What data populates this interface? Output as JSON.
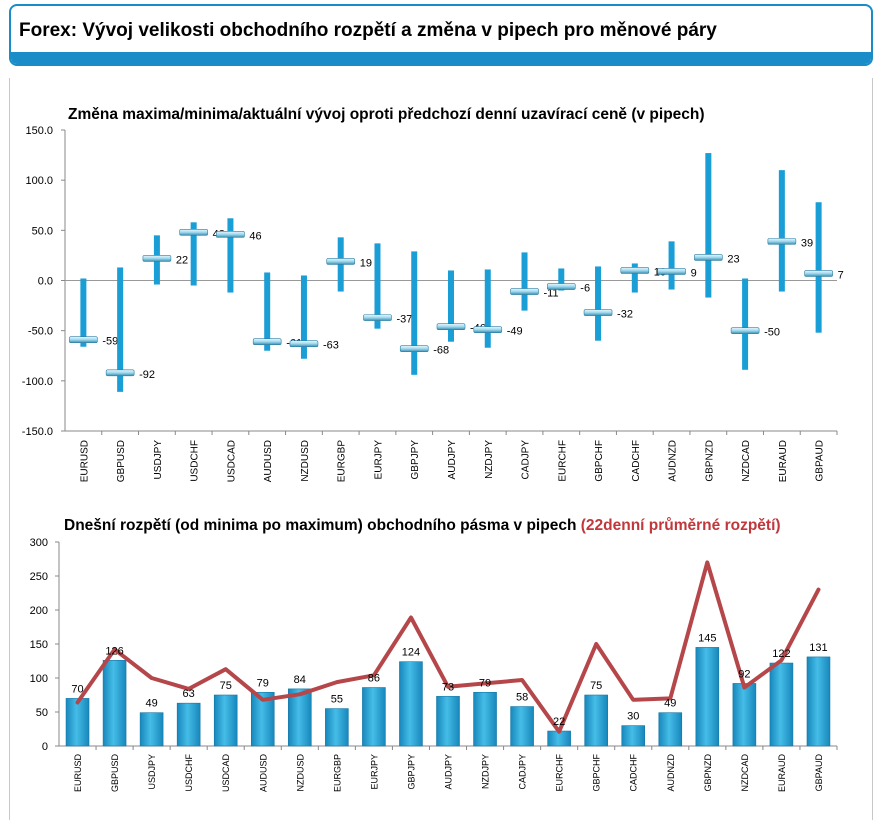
{
  "header": {
    "title": "Forex: Vývoj velikosti obchodního rozpětí a změna v pipech pro měnové páry"
  },
  "colors": {
    "accent": "#1a8cc7",
    "bar": "#1a9ed6",
    "marker": "#9ed8ef",
    "avg_line": "#b5474a",
    "red_text": "#c0373c"
  },
  "chart_data": [
    {
      "type": "range",
      "title": "Změna maxima/minima/aktuální vývoj oproti předchozí denní uzavírací ceně (v pipech)",
      "xlabel": "",
      "ylabel": "",
      "ylim": [
        -150,
        150
      ],
      "yticks": [
        "150.0",
        "100.0",
        "50.0",
        "0.0",
        "-50.0",
        "-100.0",
        "-150.0"
      ],
      "categories": [
        "EURUSD",
        "GBPUSD",
        "USDJPY",
        "USDCHF",
        "USDCAD",
        "AUDUSD",
        "NZDUSD",
        "EURGBP",
        "EURJPY",
        "GBPJPY",
        "AUDJPY",
        "NZDJPY",
        "CADJPY",
        "EURCHF",
        "GBPCHF",
        "CADCHF",
        "AUDNZD",
        "GBPNZD",
        "NZDCAD",
        "EURAUD",
        "GBPAUD"
      ],
      "series": [
        {
          "name": "max",
          "values": [
            2,
            13,
            45,
            58,
            62,
            8,
            5,
            43,
            37,
            29,
            10,
            11,
            28,
            12,
            14,
            17,
            39,
            127,
            2,
            110,
            78
          ]
        },
        {
          "name": "min",
          "values": [
            -66,
            -111,
            -4,
            -5,
            -12,
            -70,
            -78,
            -11,
            -48,
            -94,
            -61,
            -67,
            -30,
            -10,
            -60,
            -12,
            -9,
            -17,
            -89,
            -11,
            -52
          ]
        },
        {
          "name": "current",
          "values": [
            -59,
            -92,
            22,
            48,
            46,
            -61,
            -63,
            19,
            -37,
            -68,
            -46,
            -49,
            -11,
            -6,
            -32,
            10,
            9,
            23,
            -50,
            39,
            7
          ]
        }
      ],
      "data_labels": [
        "-59",
        "-92",
        "22",
        "48",
        "46",
        "-61",
        "-63",
        "19",
        "-37",
        "-68",
        "-46",
        "-49",
        "-11",
        "-6",
        "-32",
        "10",
        "9",
        "23",
        "-50",
        "39",
        "7"
      ]
    },
    {
      "type": "bar",
      "title": "Dnešní rozpětí (od minima po maximum) obchodního pásma v pipech",
      "title_accent": "(22denní průměrné rozpětí)",
      "xlabel": "",
      "ylabel": "",
      "ylim": [
        0,
        300
      ],
      "yticks": [
        "300",
        "250",
        "200",
        "150",
        "100",
        "50",
        "0"
      ],
      "categories": [
        "EURUSD",
        "GBPUSD",
        "USDJPY",
        "USDCHF",
        "USDCAD",
        "AUDUSD",
        "NZDUSD",
        "EURGBP",
        "EURJPY",
        "GBPJPY",
        "AUDJPY",
        "NZDJPY",
        "CADJPY",
        "EURCHF",
        "GBPCHF",
        "CADCHF",
        "AUDNZD",
        "GBPNZD",
        "NZDCAD",
        "EURAUD",
        "GBPAUD"
      ],
      "series": [
        {
          "name": "today",
          "values": [
            70,
            126,
            49,
            63,
            75,
            79,
            84,
            55,
            86,
            124,
            73,
            79,
            58,
            22,
            75,
            30,
            49,
            145,
            92,
            122,
            131
          ]
        },
        {
          "name": "avg22",
          "values": [
            64,
            142,
            100,
            84,
            113,
            68,
            76,
            94,
            104,
            189,
            87,
            92,
            97,
            21,
            150,
            68,
            70,
            270,
            86,
            126,
            230
          ]
        }
      ],
      "data_labels": [
        "70",
        "126",
        "49",
        "63",
        "75",
        "79",
        "84",
        "55",
        "86",
        "124",
        "73",
        "79",
        "58",
        "22",
        "75",
        "30",
        "49",
        "145",
        "92",
        "122",
        "131"
      ]
    }
  ]
}
